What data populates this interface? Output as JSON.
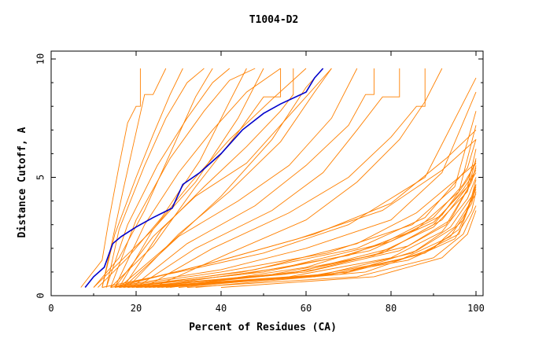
{
  "chart_data": {
    "type": "line",
    "title": "T1004-D2",
    "xlabel": "Percent of Residues (CA)",
    "ylabel": "Distance Cutoff, A",
    "xlim": [
      0,
      100
    ],
    "ylim": [
      0,
      10
    ],
    "x_ticks": [
      0,
      20,
      40,
      60,
      80,
      100
    ],
    "y_ticks": [
      0,
      5,
      10
    ],
    "grid": false,
    "colors": {
      "background": "#ffffff",
      "axis": "#000000",
      "highlight": "#0000cc",
      "others": "#ff8000"
    },
    "highlight_series": {
      "name": "highlighted model",
      "x": [
        8.0,
        10.0,
        12.5,
        14.5,
        16.5,
        20.0,
        24.0,
        28.5,
        31.0,
        35.0,
        40.0,
        45.0,
        50.0,
        54.0,
        60.0,
        62.0,
        64.0
      ],
      "y": [
        0.35,
        0.8,
        1.2,
        2.2,
        2.5,
        2.9,
        3.3,
        3.7,
        4.7,
        5.2,
        6.0,
        7.0,
        7.7,
        8.1,
        8.6,
        9.2,
        9.6
      ]
    },
    "series": [
      {
        "x": [
          7.0,
          12.0,
          13.5,
          16.0,
          18.0,
          20.0,
          21.0,
          21.0
        ],
        "y": [
          0.35,
          1.5,
          3.1,
          5.5,
          7.3,
          8.0,
          8.0,
          9.6
        ]
      },
      {
        "x": [
          12.0,
          14.0,
          17.0,
          19.5,
          22.0,
          24.0,
          27.0
        ],
        "y": [
          0.35,
          2.0,
          4.5,
          6.5,
          8.5,
          8.5,
          9.6
        ]
      },
      {
        "x": [
          12.0,
          15.0,
          20.0,
          24.0,
          28.0,
          31.0
        ],
        "y": [
          0.35,
          2.6,
          5.0,
          6.8,
          8.5,
          9.6
        ]
      },
      {
        "x": [
          13.0,
          16.0,
          22.0,
          27.0,
          32.0,
          36.0
        ],
        "y": [
          0.35,
          2.8,
          5.5,
          7.5,
          9.0,
          9.6
        ]
      },
      {
        "x": [
          13.0,
          18.0,
          25.0,
          32.0,
          38.0,
          42.0
        ],
        "y": [
          0.35,
          3.0,
          5.5,
          7.5,
          9.0,
          9.6
        ]
      },
      {
        "x": [
          14.0,
          20.0,
          28.0,
          36.0,
          42.0,
          48.0
        ],
        "y": [
          0.35,
          3.2,
          5.8,
          7.8,
          9.1,
          9.6
        ]
      },
      {
        "x": [
          15.0,
          22.0,
          30.0,
          38.0,
          46.0,
          54.0
        ],
        "y": [
          0.35,
          3.0,
          5.2,
          7.0,
          8.6,
          9.6
        ]
      },
      {
        "x": [
          16.0,
          24.0,
          33.0,
          42.0,
          52.0,
          60.0
        ],
        "y": [
          0.35,
          2.8,
          4.8,
          6.6,
          8.3,
          9.6
        ]
      },
      {
        "x": [
          17.0,
          26.0,
          36.0,
          46.0,
          54.0,
          57.0,
          57.0
        ],
        "y": [
          0.35,
          2.8,
          4.6,
          6.3,
          7.8,
          8.5,
          9.6
        ]
      },
      {
        "x": [
          15.0,
          24.0,
          34.0,
          46.0,
          56.0,
          66.0
        ],
        "y": [
          0.35,
          2.5,
          4.2,
          5.6,
          7.6,
          9.6
        ]
      },
      {
        "x": [
          17.0,
          30.0,
          44.0,
          56.0,
          66.0,
          72.0
        ],
        "y": [
          0.35,
          2.5,
          4.0,
          5.5,
          7.5,
          9.6
        ]
      },
      {
        "x": [
          19.0,
          32.0,
          48.0,
          60.0,
          70.0,
          74.0,
          76.0,
          76.0
        ],
        "y": [
          0.35,
          2.2,
          3.8,
          5.5,
          7.2,
          8.5,
          8.5,
          9.6
        ]
      },
      {
        "x": [
          20.0,
          34.0,
          52.0,
          64.0,
          72.0,
          78.0,
          82.0,
          82.0
        ],
        "y": [
          0.35,
          2.0,
          3.6,
          5.2,
          7.0,
          8.4,
          8.4,
          9.6
        ]
      },
      {
        "x": [
          22.0,
          38.0,
          56.0,
          70.0,
          80.0,
          86.0,
          88.0,
          88.0
        ],
        "y": [
          0.35,
          2.0,
          3.5,
          5.0,
          6.7,
          8.0,
          8.0,
          9.6
        ]
      },
      {
        "x": [
          24.0,
          42.0,
          60.0,
          72.0,
          82.0,
          88.0,
          92.0
        ],
        "y": [
          0.35,
          1.8,
          3.2,
          4.8,
          6.6,
          8.2,
          9.6
        ]
      },
      {
        "x": [
          10.0,
          16.0,
          24.0,
          34.0,
          44.0,
          50.0
        ],
        "y": [
          0.35,
          1.4,
          2.8,
          4.8,
          7.5,
          9.6
        ]
      },
      {
        "x": [
          11.0,
          18.0,
          26.0,
          35.0,
          42.0,
          46.0
        ],
        "y": [
          0.35,
          1.6,
          3.3,
          5.7,
          8.2,
          9.6
        ]
      },
      {
        "x": [
          18.0,
          30.0,
          42.0,
          54.0,
          62.0,
          66.0
        ],
        "y": [
          0.35,
          2.6,
          4.4,
          6.5,
          8.6,
          9.6
        ]
      },
      {
        "x": [
          16.0,
          28.0,
          40.0,
          52.0,
          60.0,
          64.0
        ],
        "y": [
          0.35,
          2.2,
          4.2,
          6.6,
          8.8,
          9.6
        ]
      },
      {
        "x": [
          10.0,
          16.0,
          22.0,
          28.0,
          34.0,
          38.0
        ],
        "y": [
          0.35,
          1.6,
          3.6,
          6.0,
          8.4,
          9.6
        ]
      },
      {
        "x": [
          14.0,
          24.0,
          34.0,
          44.0,
          50.0,
          54.0,
          54.0
        ],
        "y": [
          0.35,
          2.1,
          4.6,
          6.9,
          8.4,
          8.4,
          9.6
        ]
      },
      {
        "x": [
          12.0,
          30.0,
          50.0,
          70.0,
          88.0,
          100.0
        ],
        "y": [
          0.35,
          1.0,
          1.8,
          3.0,
          5.0,
          9.2
        ]
      },
      {
        "x": [
          14.0,
          40.0,
          60.0,
          80.0,
          92.0,
          100.0
        ],
        "y": [
          0.35,
          1.1,
          2.0,
          3.2,
          5.2,
          8.6
        ]
      },
      {
        "x": [
          15.0,
          40.0,
          65.0,
          85.0,
          95.0,
          100.0
        ],
        "y": [
          0.35,
          1.0,
          1.8,
          3.0,
          4.6,
          7.8
        ]
      },
      {
        "x": [
          16.0,
          45.0,
          70.0,
          86.0,
          96.0,
          100.0
        ],
        "y": [
          0.35,
          0.9,
          1.7,
          2.8,
          4.4,
          7.2
        ]
      },
      {
        "x": [
          16.0,
          45.0,
          72.0,
          88.0,
          98.0,
          100.0
        ],
        "y": [
          0.35,
          1.0,
          2.0,
          3.3,
          5.4,
          6.6
        ]
      },
      {
        "x": [
          17.0,
          50.0,
          75.0,
          90.0,
          98.0,
          100.0
        ],
        "y": [
          0.35,
          1.0,
          1.9,
          3.1,
          4.6,
          6.2
        ]
      },
      {
        "x": [
          18.0,
          52.0,
          76.0,
          90.0,
          98.0,
          100.0
        ],
        "y": [
          0.35,
          0.9,
          1.7,
          2.9,
          4.4,
          5.8
        ]
      },
      {
        "x": [
          18.0,
          48.0,
          72.0,
          86.0,
          96.0,
          100.0
        ],
        "y": [
          0.35,
          1.1,
          2.2,
          3.5,
          5.0,
          5.6
        ]
      },
      {
        "x": [
          19.0,
          55.0,
          78.0,
          90.0,
          97.0,
          100.0
        ],
        "y": [
          0.35,
          0.9,
          1.8,
          3.0,
          4.5,
          5.3
        ]
      },
      {
        "x": [
          20.0,
          56.0,
          80.0,
          92.0,
          98.0,
          100.0
        ],
        "y": [
          0.35,
          0.8,
          1.6,
          2.7,
          4.1,
          5.0
        ]
      },
      {
        "x": [
          20.0,
          60.0,
          82.0,
          94.0,
          99.0,
          100.0
        ],
        "y": [
          0.35,
          0.8,
          1.5,
          2.5,
          3.9,
          4.7
        ]
      },
      {
        "x": [
          21.0,
          58.0,
          80.0,
          92.0,
          98.0,
          100.0
        ],
        "y": [
          0.35,
          1.0,
          2.0,
          3.2,
          4.6,
          5.2
        ]
      },
      {
        "x": [
          22.0,
          62.0,
          84.0,
          95.0,
          99.0,
          100.0
        ],
        "y": [
          0.35,
          0.8,
          1.5,
          2.4,
          3.6,
          4.4
        ]
      },
      {
        "x": [
          22.0,
          55.0,
          78.0,
          90.0,
          97.0,
          100.0
        ],
        "y": [
          0.35,
          1.2,
          2.2,
          3.3,
          4.7,
          5.6
        ]
      },
      {
        "x": [
          23.0,
          64.0,
          85.0,
          94.0,
          99.0,
          100.0
        ],
        "y": [
          0.35,
          0.9,
          1.8,
          2.9,
          4.2,
          4.9
        ]
      },
      {
        "x": [
          24.0,
          60.0,
          82.0,
          93.0,
          98.0,
          100.0
        ],
        "y": [
          0.35,
          1.0,
          1.9,
          3.0,
          4.5,
          5.4
        ]
      },
      {
        "x": [
          25.0,
          66.0,
          86.0,
          96.0,
          100.0
        ],
        "y": [
          0.35,
          0.9,
          1.7,
          2.6,
          4.6
        ]
      },
      {
        "x": [
          26.0,
          62.0,
          84.0,
          94.0,
          99.0,
          100.0
        ],
        "y": [
          0.35,
          1.1,
          2.1,
          3.2,
          4.8,
          5.5
        ]
      },
      {
        "x": [
          27.0,
          68.0,
          88.0,
          96.0,
          100.0
        ],
        "y": [
          0.35,
          0.9,
          1.8,
          2.8,
          4.5
        ]
      },
      {
        "x": [
          28.0,
          60.0,
          80.0,
          92.0,
          98.0,
          100.0
        ],
        "y": [
          0.35,
          1.2,
          2.3,
          3.4,
          4.9,
          5.7
        ]
      },
      {
        "x": [
          30.0,
          70.0,
          86.0,
          95.0,
          100.0
        ],
        "y": [
          0.35,
          1.0,
          1.9,
          2.9,
          4.3
        ]
      },
      {
        "x": [
          32.0,
          72.0,
          90.0,
          97.0,
          100.0
        ],
        "y": [
          0.35,
          0.8,
          1.6,
          2.6,
          3.8
        ]
      },
      {
        "x": [
          34.0,
          74.0,
          90.0,
          97.0,
          100.0
        ],
        "y": [
          0.35,
          1.0,
          2.0,
          3.2,
          4.7
        ]
      },
      {
        "x": [
          14.0,
          36.0,
          58.0,
          78.0,
          92.0,
          100.0
        ],
        "y": [
          0.35,
          1.3,
          2.4,
          3.6,
          5.3,
          6.6
        ]
      },
      {
        "x": [
          15.0,
          38.0,
          62.0,
          80.0,
          93.0,
          100.0
        ],
        "y": [
          0.35,
          1.4,
          2.6,
          3.9,
          5.8,
          7.0
        ]
      },
      {
        "x": [
          40.0,
          76.0,
          92.0,
          98.0,
          100.0
        ],
        "y": [
          0.35,
          0.8,
          1.6,
          2.6,
          3.6
        ]
      }
    ]
  }
}
